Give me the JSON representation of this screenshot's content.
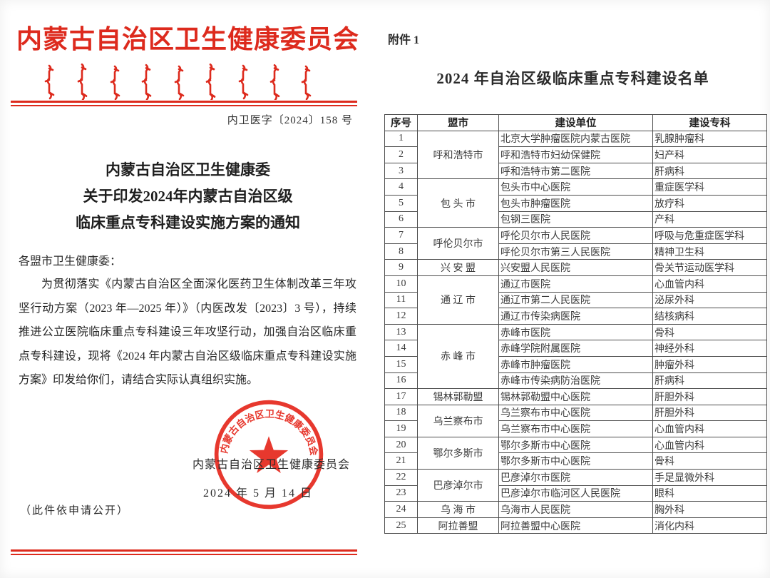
{
  "colors": {
    "accent_red": "#dd2a1d",
    "highlight_box_red": "#e8231a",
    "table_border": "#4d4d4d",
    "body_text": "#262626"
  },
  "left_doc": {
    "agency_header": "内蒙古自治区卫生健康委员会",
    "mongolian_script": "mongolian-vertical-script-decoration",
    "doc_number": "内卫医字〔2024〕158 号",
    "title_line1": "内蒙古自治区卫生健康委",
    "title_line2": "关于印发2024年内蒙古自治区级",
    "title_line3": "临床重点专科建设实施方案的通知",
    "salutation": "各盟市卫生健康委：",
    "body": "为贯彻落实《内蒙古自治区全面深化医药卫生体制改革三年攻坚行动方案（2023 年—2025 年）》（内医改发〔2023〕3 号），持续推进公立医院临床重点专科建设三年攻坚行动，加强自治区临床重点专科建设，现将《2024 年内蒙古自治区级临床重点专科建设实施方案》印发给你们，请结合实际认真组织实施。",
    "seal_text": "内蒙古自治区卫生健康委员会",
    "signer": "内蒙古自治区卫生健康委员会",
    "date": "2024 年 5 月 14 日",
    "disclosure_note": "（此件依申请公开）"
  },
  "right_doc": {
    "attachment_label": "附件 1",
    "table_title": "2024 年自治区级临床重点专科建设名单",
    "table": {
      "headers": {
        "no": "序号",
        "city": "盟市",
        "unit": "建设单位",
        "specialty": "建设专科"
      },
      "highlighted_row": "15",
      "rows": [
        {
          "no": "1",
          "city": "呼和浩特市",
          "city_span": 3,
          "unit": "北京大学肿瘤医院内蒙古医院",
          "specialty": "乳腺肿瘤科"
        },
        {
          "no": "2",
          "unit": "呼和浩特市妇幼保健院",
          "specialty": "妇产科"
        },
        {
          "no": "3",
          "unit": "呼和浩特市第二医院",
          "specialty": "肝病科"
        },
        {
          "no": "4",
          "city": "包  头  市",
          "city_span": 3,
          "unit": "包头市中心医院",
          "specialty": "重症医学科"
        },
        {
          "no": "5",
          "unit": "包头市肿瘤医院",
          "specialty": "放疗科"
        },
        {
          "no": "6",
          "unit": "包钢三医院",
          "specialty": "产科"
        },
        {
          "no": "7",
          "city": "呼伦贝尔市",
          "city_span": 2,
          "unit": "呼伦贝尔市人民医院",
          "specialty": "呼吸与危重症医学科"
        },
        {
          "no": "8",
          "unit": "呼伦贝尔市第三人民医院",
          "specialty": "精神卫生科"
        },
        {
          "no": "9",
          "city": "兴  安  盟",
          "city_span": 1,
          "unit": "兴安盟人民医院",
          "specialty": "骨关节运动医学科"
        },
        {
          "no": "10",
          "city": "通  辽  市",
          "city_span": 3,
          "unit": "通辽市医院",
          "specialty": "心血管内科"
        },
        {
          "no": "11",
          "unit": "通辽市第二人民医院",
          "specialty": "泌尿外科"
        },
        {
          "no": "12",
          "unit": "通辽市传染病医院",
          "specialty": "结核病科"
        },
        {
          "no": "13",
          "city": "赤  峰  市",
          "city_span": 4,
          "unit": "赤峰市医院",
          "specialty": "骨科"
        },
        {
          "no": "14",
          "unit": "赤峰学院附属医院",
          "specialty": "神经外科"
        },
        {
          "no": "15",
          "unit": "赤峰市肿瘤医院",
          "specialty": "肿瘤外科"
        },
        {
          "no": "16",
          "unit": "赤峰市传染病防治医院",
          "specialty": "肝病科"
        },
        {
          "no": "17",
          "city": "锡林郭勒盟",
          "city_span": 1,
          "unit": "锡林郭勒盟中心医院",
          "specialty": "肝胆外科"
        },
        {
          "no": "18",
          "city": "乌兰察布市",
          "city_span": 2,
          "unit": "乌兰察布市中心医院",
          "specialty": "肝胆外科"
        },
        {
          "no": "19",
          "unit": "乌兰察布市中心医院",
          "specialty": "心血管内科"
        },
        {
          "no": "20",
          "city": "鄂尔多斯市",
          "city_span": 2,
          "unit": "鄂尔多斯市中心医院",
          "specialty": "心血管内科"
        },
        {
          "no": "21",
          "unit": "鄂尔多斯市中心医院",
          "specialty": "骨科"
        },
        {
          "no": "22",
          "city": "巴彦淖尔市",
          "city_span": 2,
          "unit": "巴彦淖尔市医院",
          "specialty": "手足显微外科"
        },
        {
          "no": "23",
          "unit": "巴彦淖尔市临河区人民医院",
          "specialty": "眼科"
        },
        {
          "no": "24",
          "city": "乌  海  市",
          "city_span": 1,
          "unit": "乌海市人民医院",
          "specialty": "胸外科"
        },
        {
          "no": "25",
          "city": "阿拉善盟",
          "city_span": 1,
          "unit": "阿拉善盟中心医院",
          "specialty": "消化内科"
        }
      ]
    }
  }
}
